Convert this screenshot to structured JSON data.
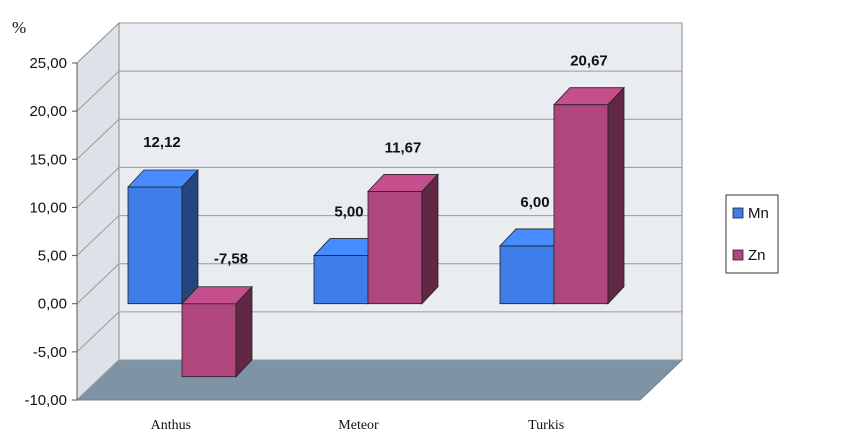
{
  "chart_data": {
    "type": "bar",
    "unit_label": "%",
    "categories": [
      "Anthus",
      "Meteor",
      "Turkis"
    ],
    "series": [
      {
        "name": "Mn",
        "values": [
          12.12,
          5.0,
          6.0
        ],
        "labels": [
          "12,12",
          "5,00",
          "6,00"
        ],
        "color": "#3f7de8"
      },
      {
        "name": "Zn",
        "values": [
          -7.58,
          11.67,
          20.67
        ],
        "labels": [
          "-7,58",
          "11,67",
          "20,67"
        ],
        "color": "#b0467e"
      }
    ],
    "y_ticks": [
      25,
      20,
      15,
      10,
      5,
      0,
      -5,
      -10
    ],
    "y_tick_labels": [
      "25,00",
      "20,00",
      "15,00",
      "10,00",
      "5,00",
      "0,00",
      "-5,00",
      "-10,00"
    ],
    "ylim": [
      -10,
      25
    ],
    "grid": true,
    "legend_position": "right",
    "style": "3d-clustered-column"
  }
}
